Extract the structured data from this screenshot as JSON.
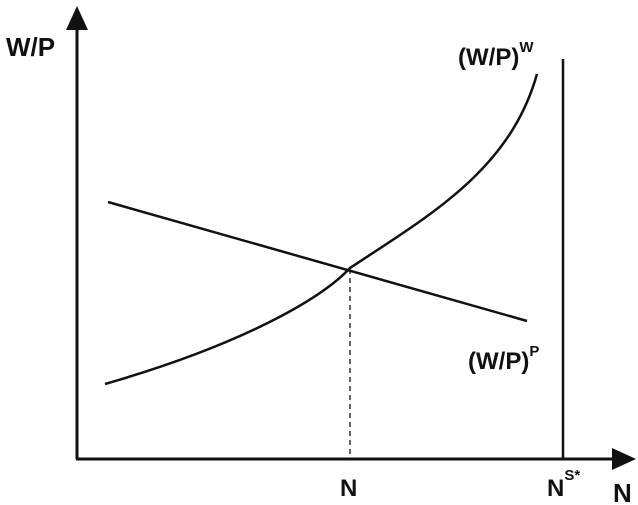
{
  "axes": {
    "y_label": "W/P",
    "x_label": "N"
  },
  "curves": {
    "wage_setting": {
      "label_base": "(W/P)",
      "label_sup": "W"
    },
    "price_setting": {
      "label_base": "(W/P)",
      "label_sup": "P"
    }
  },
  "ticks": {
    "equilibrium": "N",
    "labor_force_base": "N",
    "labor_force_sup": "S*"
  },
  "colors": {
    "ink": "#111111",
    "background": "#ffffff"
  }
}
